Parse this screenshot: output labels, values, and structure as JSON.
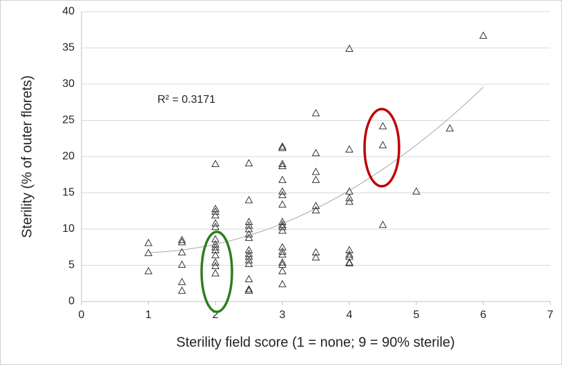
{
  "chart_data": {
    "type": "scatter",
    "xlabel": "Sterility field score (1 = none; 9 = 90% sterile)",
    "ylabel": "Sterility (% of outer florets)",
    "annotation": "R² = 0.3171",
    "trendline": "polynomial",
    "marker_color": "#333333",
    "grid": true,
    "xlim": [
      0,
      7
    ],
    "xticks": [
      0,
      1,
      2,
      3,
      4,
      5,
      6,
      7
    ],
    "ylim": [
      0,
      40
    ],
    "yticks": [
      0,
      5,
      10,
      15,
      20,
      25,
      30,
      35,
      40
    ],
    "x": [
      1,
      1,
      1,
      1.5,
      1.5,
      1.5,
      1.5,
      1.5,
      1.5,
      2,
      2,
      2,
      2,
      2,
      2,
      2,
      2,
      2,
      2,
      2,
      2,
      2,
      2,
      2.5,
      2.5,
      2.5,
      2.5,
      2.5,
      2.5,
      2.5,
      2.5,
      2.5,
      2.5,
      2.5,
      2.5,
      2.5,
      2.5,
      2.5,
      3,
      3,
      3,
      3,
      3,
      3,
      3,
      3,
      3,
      3,
      3,
      3,
      3,
      3,
      3,
      3,
      3,
      3,
      3,
      3.5,
      3.5,
      3.5,
      3.5,
      3.5,
      3.5,
      3.5,
      3.5,
      4,
      4,
      4,
      4,
      4,
      4,
      4,
      4,
      4,
      4,
      4.5,
      4.5,
      4.5,
      5,
      5.5,
      6
    ],
    "values": [
      8.1,
      6.7,
      4.2,
      8.5,
      8.2,
      6.8,
      5.1,
      2.7,
      1.5,
      19,
      12.8,
      12.4,
      11.9,
      10.8,
      10.3,
      8.6,
      7.9,
      7.5,
      7.1,
      6.4,
      5.4,
      4.9,
      3.9,
      19.1,
      14,
      11,
      10.5,
      10,
      9.3,
      8.8,
      7.1,
      6.6,
      6.2,
      5.7,
      5.2,
      3.1,
      1.7,
      1.5,
      21.4,
      21.2,
      19,
      18.7,
      16.8,
      15.2,
      14.7,
      13.4,
      11,
      10.6,
      10.3,
      9.8,
      7.5,
      6.9,
      6.5,
      5.4,
      5.1,
      4.2,
      2.4,
      26,
      20.5,
      17.9,
      16.8,
      13.2,
      12.6,
      6.8,
      6.1,
      34.9,
      21,
      15.2,
      14.3,
      13.8,
      7.1,
      6.5,
      6.2,
      5.4,
      5.3,
      24.2,
      21.6,
      10.6,
      15.2,
      23.9,
      36.7
    ]
  }
}
